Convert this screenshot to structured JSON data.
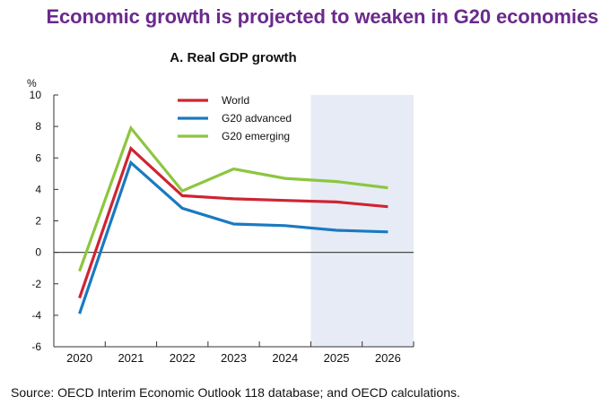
{
  "title": "Economic growth is projected to weaken in G20 economies",
  "source": "Source: OECD Interim Economic Outlook 118 database; and OECD calculations.",
  "colors": {
    "title": "#6a2a8c",
    "world": "#cf2433",
    "g20_advanced": "#1a7abf",
    "g20_emerging": "#8cc63f",
    "projection_shade": "#e6ebf5"
  },
  "chart_data": {
    "type": "line",
    "title": "A. Real GDP growth",
    "ylabel": "%",
    "xlabel": "",
    "categories": [
      "2020",
      "2021",
      "2022",
      "2023",
      "2024",
      "2025",
      "2026"
    ],
    "ylim": [
      -6,
      10
    ],
    "yticks": [
      10,
      8,
      6,
      4,
      2,
      0,
      -2,
      -4,
      -6
    ],
    "ytick_labels": [
      "10",
      "8",
      "6",
      "4",
      "2",
      "0",
      "-2",
      "-4",
      "-6"
    ],
    "projection_shaded_from": "2025",
    "legend_position": "top-left inside",
    "series": [
      {
        "name": "World",
        "color": "#cf2433",
        "values": [
          -2.9,
          6.6,
          3.6,
          3.4,
          3.3,
          3.2,
          2.9
        ]
      },
      {
        "name": "G20 advanced",
        "color": "#1a7abf",
        "values": [
          -3.9,
          5.7,
          2.8,
          1.8,
          1.7,
          1.4,
          1.3
        ]
      },
      {
        "name": "G20 emerging",
        "color": "#8cc63f",
        "values": [
          -1.2,
          7.9,
          3.9,
          5.3,
          4.7,
          4.5,
          4.1
        ]
      }
    ]
  }
}
